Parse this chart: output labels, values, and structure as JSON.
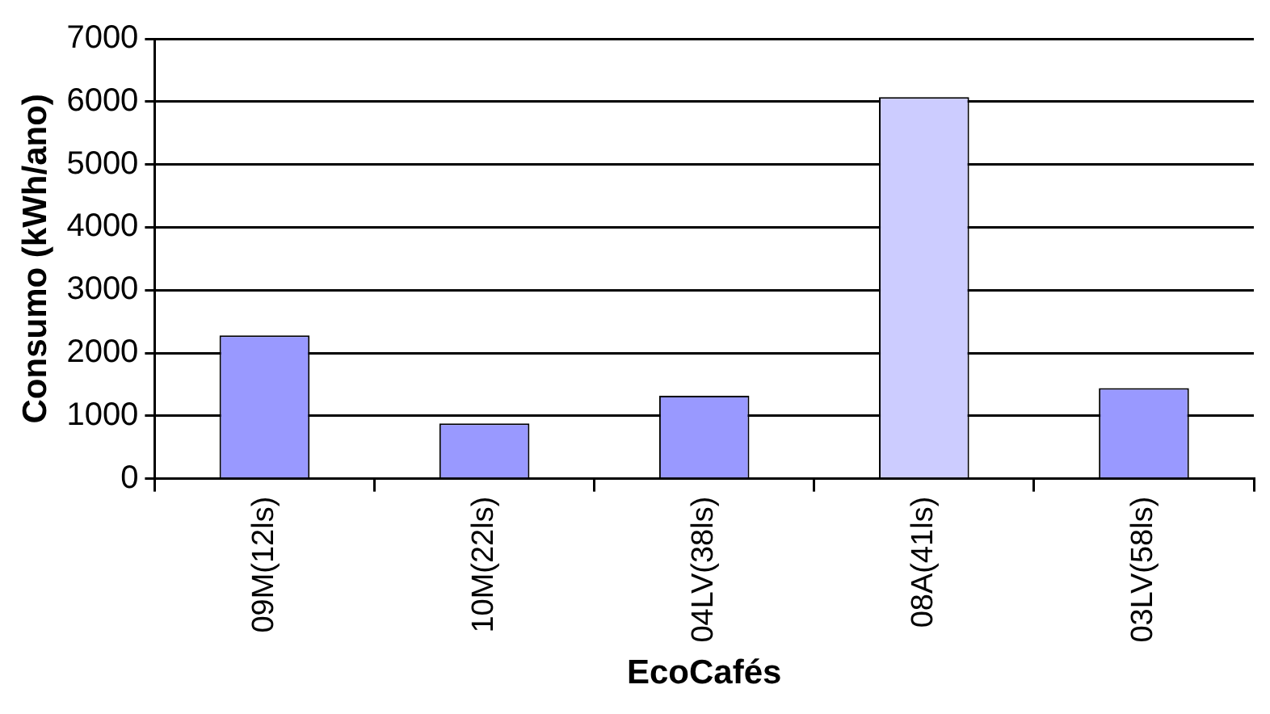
{
  "chart_data": {
    "type": "bar",
    "xlabel": "EcoCafés",
    "ylabel": "Consumo (kWh/ano)",
    "categories": [
      "09M(12ls)",
      "10M(22ls)",
      "04LV(38ls)",
      "08A(41ls)",
      "03LV(58ls)"
    ],
    "values": [
      2280,
      880,
      1320,
      6070,
      1440
    ],
    "colors": [
      "#9999ff",
      "#9999ff",
      "#9999ff",
      "#ccccff",
      "#9999ff"
    ],
    "ylim": [
      0,
      7000
    ],
    "yticks": [
      0,
      1000,
      2000,
      3000,
      4000,
      5000,
      6000,
      7000
    ],
    "grid": "y",
    "legend": false
  }
}
